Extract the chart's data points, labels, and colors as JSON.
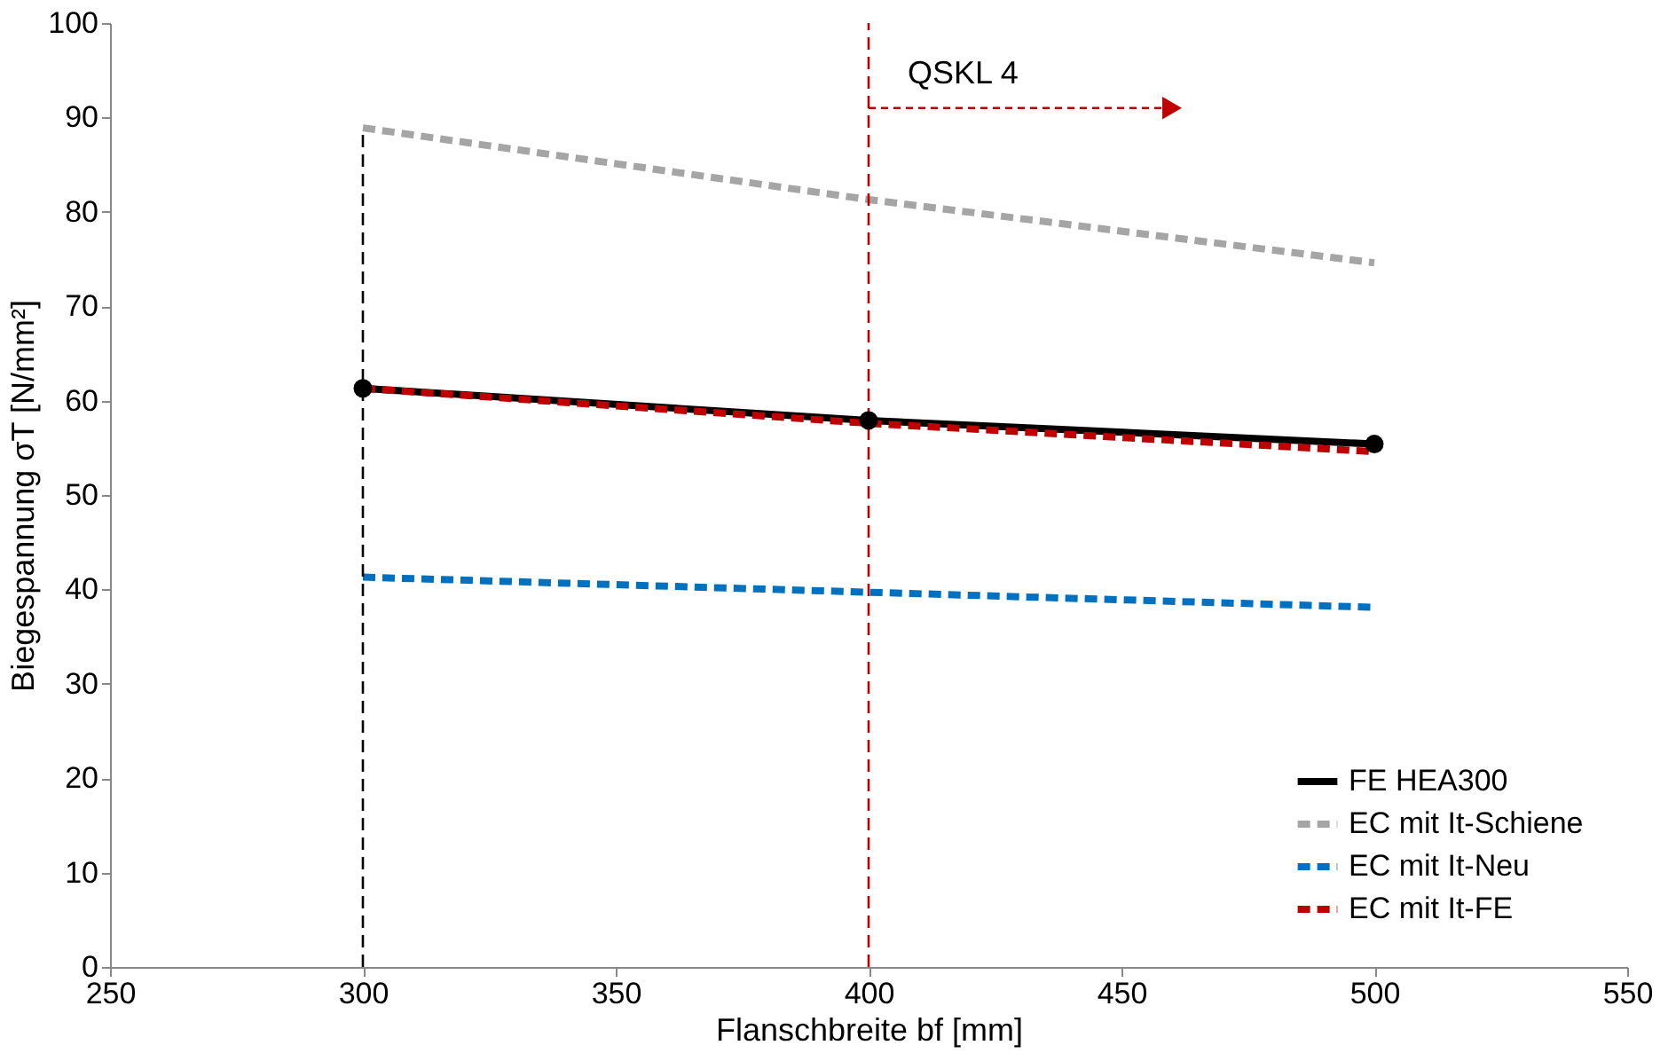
{
  "chart_data": {
    "type": "line",
    "xlabel": "Flanschbreite bf [mm]",
    "ylabel": "Biegespannung σT [N/mm²]",
    "x": [
      300,
      400,
      500
    ],
    "series": [
      {
        "name": "FE HEA300",
        "color": "#000000",
        "values": [
          61.3,
          57.9,
          55.4
        ],
        "marker": "circle",
        "line_style": "solid"
      },
      {
        "name": "EC mit It-Schiene",
        "color": "#a5a5a5",
        "values": [
          88.9,
          81.3,
          74.6
        ],
        "marker": "none",
        "line_style": "dashed"
      },
      {
        "name": "EC mit It-Neu",
        "color": "#0070c0",
        "values": [
          41.3,
          39.7,
          38.1
        ],
        "marker": "none",
        "line_style": "dashed"
      },
      {
        "name": "EC mit It-FE",
        "color": "#c00000",
        "values": [
          61.3,
          57.6,
          54.6
        ],
        "marker": "none",
        "line_style": "dashed"
      }
    ],
    "xlim": [
      250,
      550
    ],
    "xticks": [
      250,
      300,
      350,
      400,
      450,
      500,
      550
    ],
    "ylim": [
      0,
      100
    ],
    "yticks": [
      0,
      10,
      20,
      30,
      40,
      50,
      60,
      70,
      80,
      90,
      100
    ],
    "ref_lines": [
      {
        "axis": "x",
        "value": 300,
        "color": "#000000",
        "line_style": "dashed"
      },
      {
        "axis": "x",
        "value": 400,
        "color": "#c00000",
        "line_style": "dashed"
      }
    ],
    "annotations": [
      {
        "text": "QSKL 4",
        "x": 400,
        "y": 91
      }
    ],
    "grid": false,
    "legend": "bottom right"
  }
}
